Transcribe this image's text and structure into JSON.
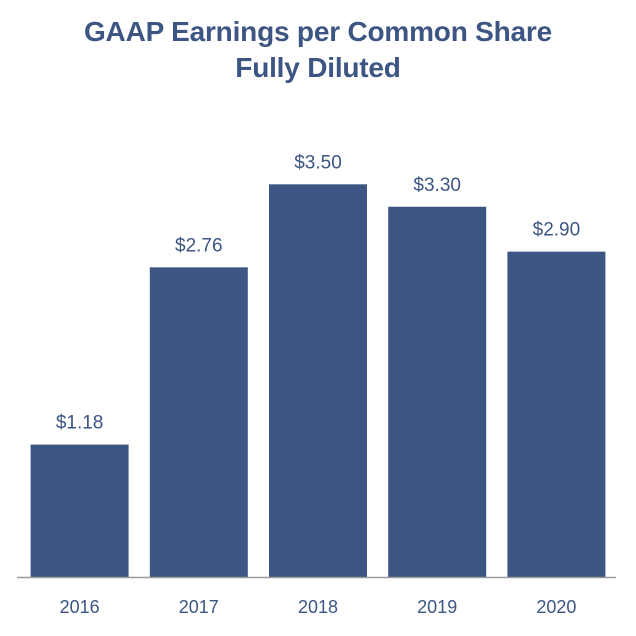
{
  "chart_data": {
    "type": "bar",
    "title": "GAAP Earnings per Common Share",
    "subtitle": "Fully Diluted",
    "categories": [
      "2016",
      "2017",
      "2018",
      "2019",
      "2020"
    ],
    "values": [
      1.18,
      2.76,
      3.5,
      3.3,
      2.9
    ],
    "data_labels": [
      "$1.18",
      "$2.76",
      "$3.50",
      "$3.30",
      "$2.90"
    ],
    "xlabel": "",
    "ylabel": "",
    "ylim": [
      0,
      4.1
    ],
    "grid": false,
    "legend": "none",
    "bar_color": "#3d5583",
    "axis_color": "#9a9a9a",
    "label_color": "#3d5583"
  }
}
